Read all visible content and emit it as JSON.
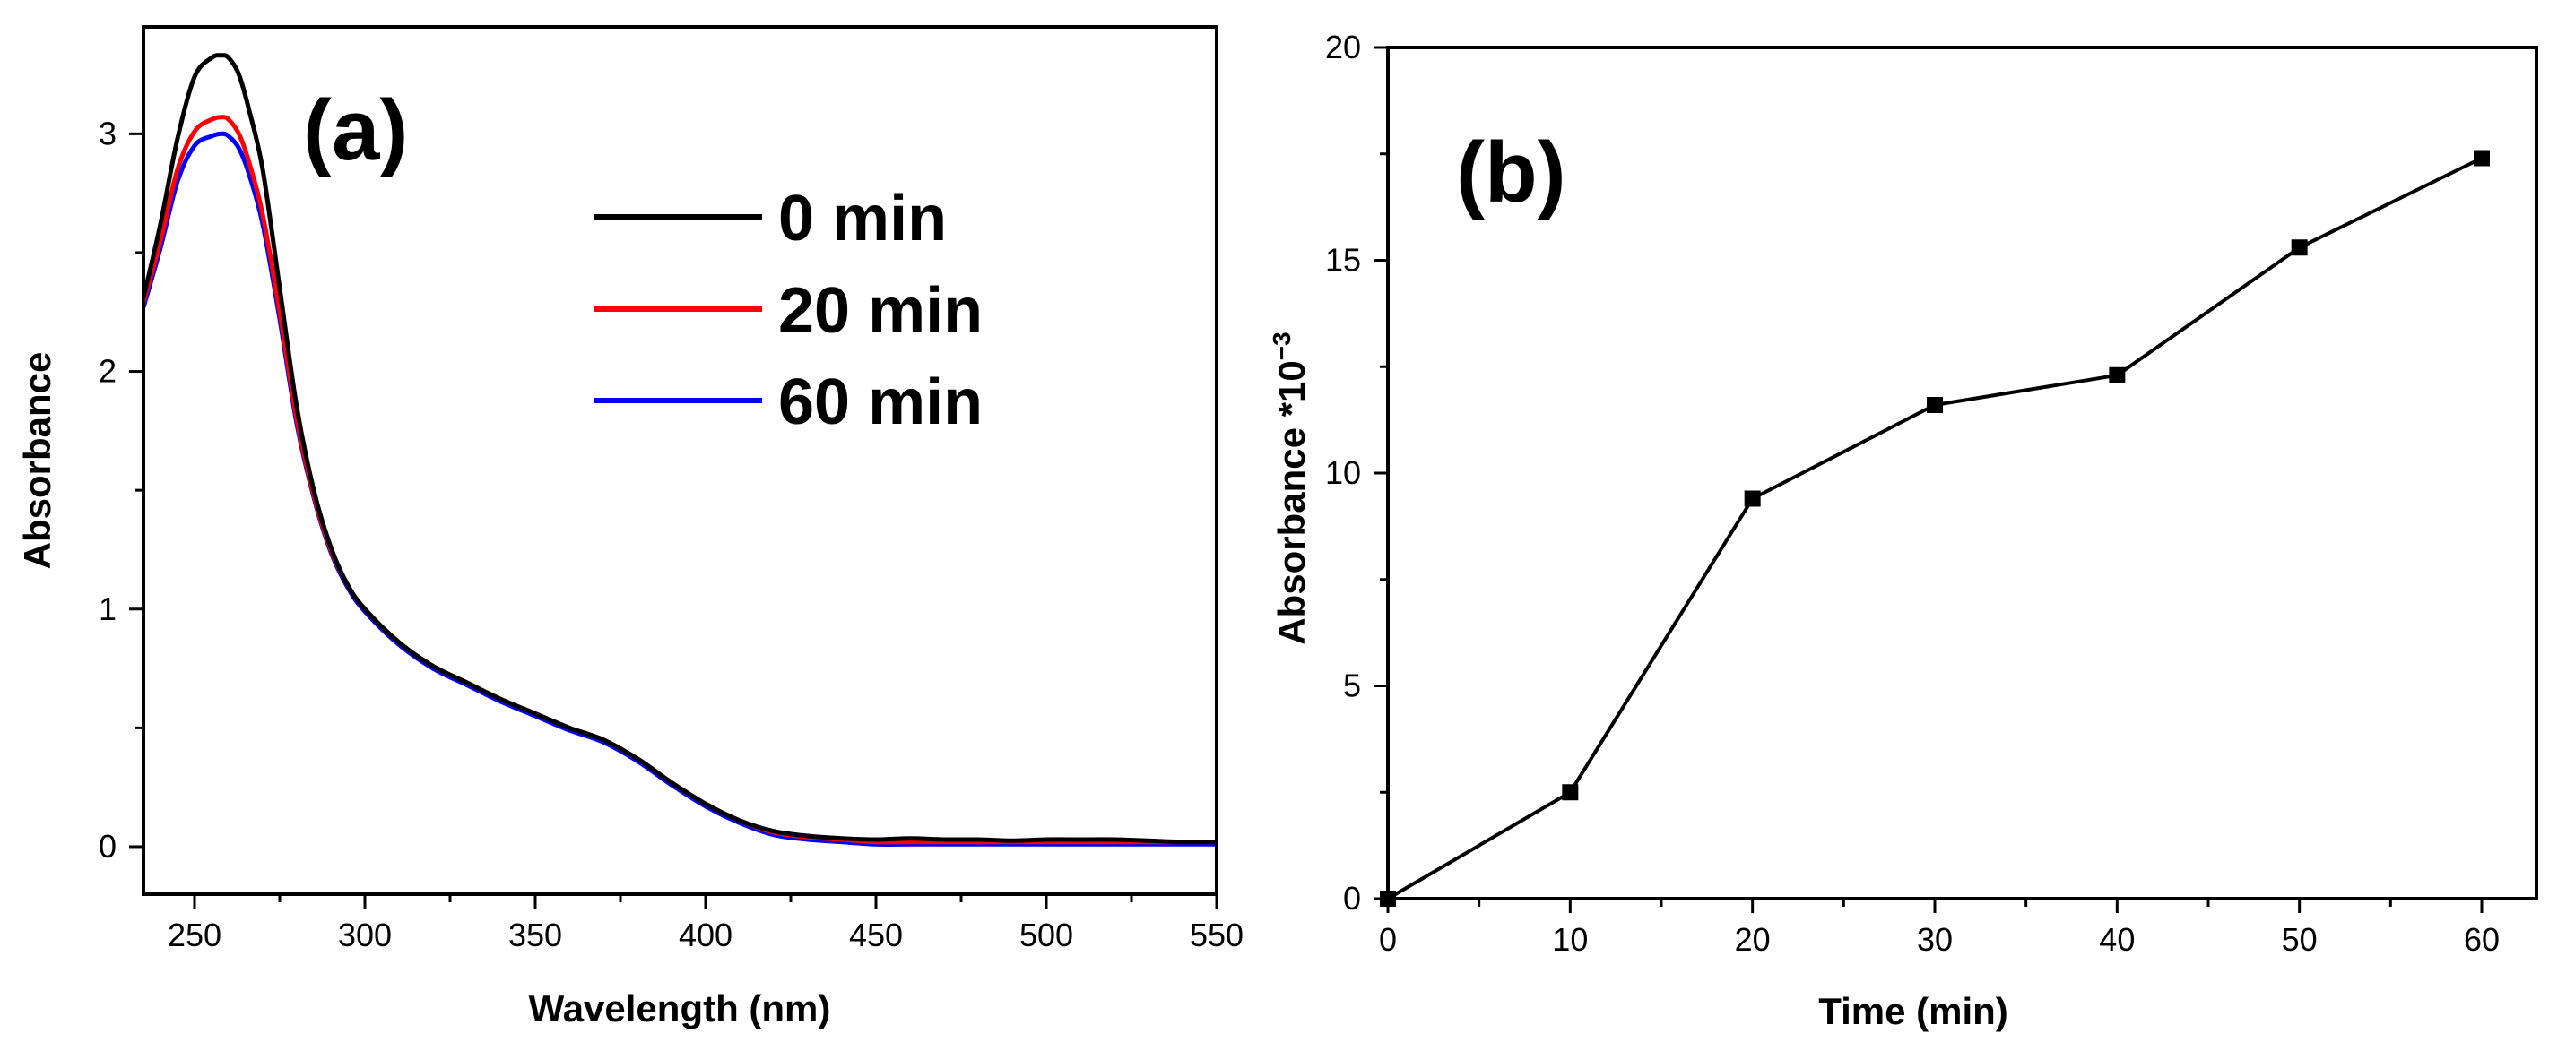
{
  "chart_data": [
    {
      "id": "panel_a",
      "type": "line",
      "panel_label": "(a)",
      "xlabel": "Wavelength (nm)",
      "ylabel": "Absorbance",
      "xlim": [
        235,
        550
      ],
      "ylim": [
        -0.2,
        3.45
      ],
      "xticks": [
        250,
        300,
        350,
        400,
        450,
        500,
        550
      ],
      "yticks": [
        0,
        1,
        2,
        3
      ],
      "legend_position": "top-right",
      "series": [
        {
          "name": "0 min",
          "color": "#000000",
          "x": [
            235,
            240,
            245,
            250,
            255,
            258,
            260,
            263,
            266,
            270,
            275,
            280,
            285,
            290,
            295,
            300,
            310,
            320,
            330,
            340,
            350,
            360,
            370,
            380,
            390,
            400,
            410,
            420,
            430,
            440,
            450,
            460,
            470,
            480,
            490,
            500,
            510,
            520,
            530,
            540,
            550
          ],
          "y": [
            2.31,
            2.62,
            2.98,
            3.24,
            3.32,
            3.33,
            3.32,
            3.25,
            3.1,
            2.85,
            2.35,
            1.85,
            1.5,
            1.26,
            1.1,
            1.0,
            0.86,
            0.76,
            0.69,
            0.62,
            0.56,
            0.5,
            0.45,
            0.37,
            0.27,
            0.18,
            0.11,
            0.065,
            0.045,
            0.035,
            0.03,
            0.035,
            0.03,
            0.03,
            0.025,
            0.03,
            0.03,
            0.03,
            0.025,
            0.02,
            0.02
          ]
        },
        {
          "name": "20 min",
          "color": "#ff0000",
          "x": [
            235,
            240,
            245,
            250,
            255,
            258,
            260,
            263,
            266,
            270,
            275,
            280,
            285,
            290,
            295,
            300,
            310,
            320,
            330,
            340,
            350,
            360,
            370,
            380,
            390,
            400,
            410,
            420,
            430,
            440,
            450,
            460,
            470,
            480,
            490,
            500,
            510,
            520,
            530,
            540,
            550
          ],
          "y": [
            2.29,
            2.55,
            2.85,
            3.01,
            3.06,
            3.07,
            3.06,
            3.0,
            2.88,
            2.66,
            2.25,
            1.8,
            1.48,
            1.25,
            1.1,
            1.0,
            0.86,
            0.76,
            0.69,
            0.62,
            0.56,
            0.5,
            0.45,
            0.37,
            0.27,
            0.18,
            0.11,
            0.06,
            0.04,
            0.03,
            0.02,
            0.02,
            0.02,
            0.02,
            0.02,
            0.02,
            0.02,
            0.02,
            0.02,
            0.02,
            0.02
          ]
        },
        {
          "name": "60 min",
          "color": "#0000ff",
          "x": [
            235,
            240,
            245,
            250,
            255,
            258,
            260,
            263,
            266,
            270,
            275,
            280,
            285,
            290,
            295,
            300,
            310,
            320,
            330,
            340,
            350,
            360,
            370,
            380,
            390,
            400,
            410,
            420,
            430,
            440,
            450,
            460,
            470,
            480,
            490,
            500,
            510,
            520,
            530,
            540,
            550
          ],
          "y": [
            2.27,
            2.52,
            2.8,
            2.95,
            2.99,
            3.0,
            2.99,
            2.94,
            2.83,
            2.62,
            2.22,
            1.78,
            1.47,
            1.24,
            1.09,
            0.99,
            0.85,
            0.75,
            0.68,
            0.61,
            0.55,
            0.49,
            0.44,
            0.36,
            0.26,
            0.17,
            0.1,
            0.05,
            0.03,
            0.02,
            0.01,
            0.01,
            0.01,
            0.01,
            0.01,
            0.01,
            0.01,
            0.01,
            0.01,
            0.01,
            0.01
          ]
        }
      ]
    },
    {
      "id": "panel_b",
      "type": "line",
      "panel_label": "(b)",
      "xlabel": "Time (min)",
      "ylabel": "Absorbance  *10",
      "ylabel_superscript": "−3",
      "xlim": [
        0,
        63
      ],
      "ylim": [
        0,
        20
      ],
      "xticks": [
        0,
        10,
        20,
        30,
        40,
        50,
        60
      ],
      "yticks": [
        0,
        5,
        10,
        15,
        20
      ],
      "marker": "square",
      "series": [
        {
          "name": "Absorbance",
          "color": "#000000",
          "x": [
            0,
            10,
            20,
            30,
            40,
            50,
            60
          ],
          "y": [
            0,
            2.5,
            9.4,
            11.6,
            12.3,
            15.3,
            17.4
          ]
        }
      ]
    }
  ]
}
